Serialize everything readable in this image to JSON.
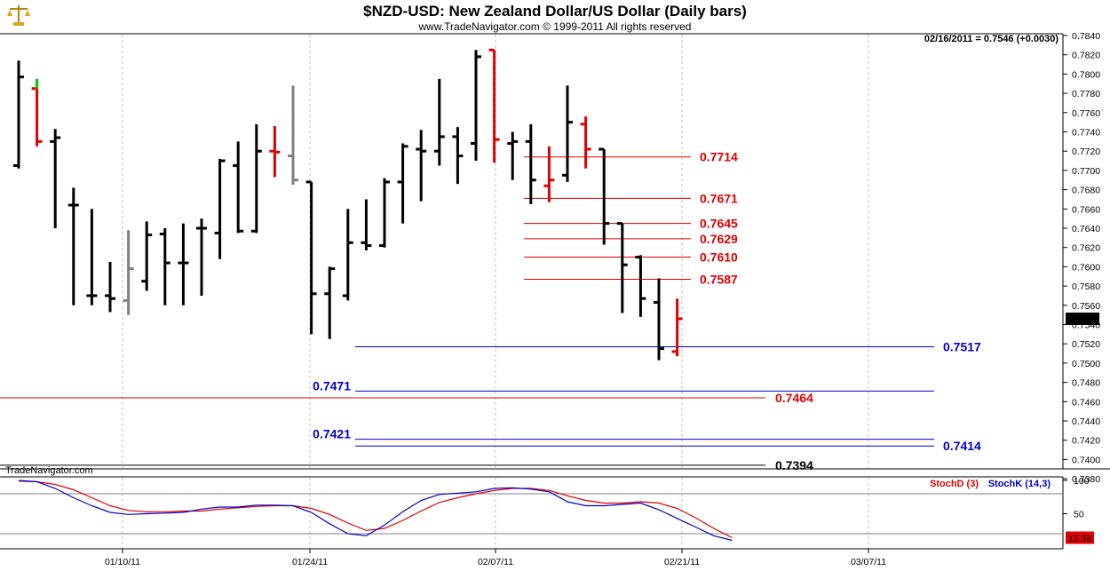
{
  "header": {
    "title": "$NZD-USD:  New Zealand Dollar/US Dollar  (Daily bars)",
    "subtitle": "www.TradeNavigator.com © 1999-2011 All rights reserved",
    "last_quote": "02/16/2011 = 0.7546 (+0.0030)",
    "watermark": "TradeNavigator.com",
    "logo_icon": "scales-of-justice-icon"
  },
  "colors": {
    "up": "#000000",
    "down": "#e00000",
    "neutral": "#808080",
    "green": "#00cc00",
    "blue_level": "#0000cc",
    "red_level": "#e00000",
    "stochD": "#e00000",
    "stochK": "#0000cc"
  },
  "chart_data": [
    {
      "type": "ohlc",
      "title": "$NZD-USD:  New Zealand Dollar/US Dollar  (Daily bars)",
      "ylim": [
        0.737,
        0.7845
      ],
      "y_ticks": [
        "0.7840",
        "0.7820",
        "0.7800",
        "0.7780",
        "0.7760",
        "0.7740",
        "0.7720",
        "0.7700",
        "0.7680",
        "0.7660",
        "0.7640",
        "0.7620",
        "0.7600",
        "0.7580",
        "0.7560",
        "0.7540",
        "0.7520",
        "0.7500",
        "0.7480",
        "0.7460",
        "0.7440",
        "0.7420",
        "0.7400",
        "0.7380"
      ],
      "x_tick_labels": [
        "01/10/11",
        "01/24/11",
        "02/07/11",
        "02/21/11",
        "03/07/11"
      ],
      "last_price_label": "0.7546",
      "bars": [
        {
          "o": 0.7705,
          "h": 0.7814,
          "l": 0.7702,
          "c": 0.7797,
          "color": "up"
        },
        {
          "o": 0.7785,
          "h": 0.7795,
          "l": 0.7725,
          "c": 0.773,
          "color": "down",
          "top_color": "green"
        },
        {
          "o": 0.773,
          "h": 0.7743,
          "l": 0.764,
          "c": 0.7734,
          "color": "up"
        },
        {
          "o": 0.7664,
          "h": 0.7682,
          "l": 0.756,
          "c": 0.7664,
          "color": "up"
        },
        {
          "o": 0.757,
          "h": 0.766,
          "l": 0.756,
          "c": 0.757,
          "color": "up"
        },
        {
          "o": 0.757,
          "h": 0.7605,
          "l": 0.7553,
          "c": 0.7567,
          "color": "up"
        },
        {
          "o": 0.7565,
          "h": 0.7638,
          "l": 0.755,
          "c": 0.7598,
          "color": "neutral"
        },
        {
          "o": 0.7585,
          "h": 0.7647,
          "l": 0.7575,
          "c": 0.7633,
          "color": "up"
        },
        {
          "o": 0.7634,
          "h": 0.764,
          "l": 0.756,
          "c": 0.7604,
          "color": "up"
        },
        {
          "o": 0.7604,
          "h": 0.7645,
          "l": 0.756,
          "c": 0.7604,
          "color": "up"
        },
        {
          "o": 0.764,
          "h": 0.765,
          "l": 0.757,
          "c": 0.764,
          "color": "up"
        },
        {
          "o": 0.7635,
          "h": 0.7712,
          "l": 0.7608,
          "c": 0.771,
          "color": "up"
        },
        {
          "o": 0.7705,
          "h": 0.773,
          "l": 0.7635,
          "c": 0.7637,
          "color": "up"
        },
        {
          "o": 0.7637,
          "h": 0.7748,
          "l": 0.7635,
          "c": 0.772,
          "color": "up"
        },
        {
          "o": 0.772,
          "h": 0.7746,
          "l": 0.7693,
          "c": 0.7719,
          "color": "down"
        },
        {
          "o": 0.7715,
          "h": 0.7788,
          "l": 0.7685,
          "c": 0.769,
          "color": "neutral"
        },
        {
          "o": 0.7688,
          "h": 0.7688,
          "l": 0.753,
          "c": 0.7572,
          "color": "up"
        },
        {
          "o": 0.7572,
          "h": 0.76,
          "l": 0.7525,
          "c": 0.7598,
          "color": "up"
        },
        {
          "o": 0.757,
          "h": 0.766,
          "l": 0.7565,
          "c": 0.7625,
          "color": "up"
        },
        {
          "o": 0.7625,
          "h": 0.767,
          "l": 0.7617,
          "c": 0.7622,
          "color": "up"
        },
        {
          "o": 0.7622,
          "h": 0.7692,
          "l": 0.762,
          "c": 0.7688,
          "color": "up"
        },
        {
          "o": 0.7688,
          "h": 0.7728,
          "l": 0.7645,
          "c": 0.7725,
          "color": "up"
        },
        {
          "o": 0.7722,
          "h": 0.7742,
          "l": 0.7668,
          "c": 0.772,
          "color": "up"
        },
        {
          "o": 0.772,
          "h": 0.7795,
          "l": 0.7705,
          "c": 0.7735,
          "color": "up"
        },
        {
          "o": 0.7735,
          "h": 0.7745,
          "l": 0.7686,
          "c": 0.7715,
          "color": "up"
        },
        {
          "o": 0.7728,
          "h": 0.7825,
          "l": 0.771,
          "c": 0.7818,
          "color": "up"
        },
        {
          "o": 0.7825,
          "h": 0.7825,
          "l": 0.7708,
          "c": 0.7732,
          "color": "down"
        },
        {
          "o": 0.7728,
          "h": 0.774,
          "l": 0.769,
          "c": 0.773,
          "color": "up"
        },
        {
          "o": 0.773,
          "h": 0.7748,
          "l": 0.7665,
          "c": 0.769,
          "color": "up"
        },
        {
          "o": 0.7684,
          "h": 0.7725,
          "l": 0.7667,
          "c": 0.769,
          "color": "down"
        },
        {
          "o": 0.7695,
          "h": 0.7788,
          "l": 0.7688,
          "c": 0.775,
          "color": "up"
        },
        {
          "o": 0.7748,
          "h": 0.7756,
          "l": 0.7702,
          "c": 0.7722,
          "color": "down"
        },
        {
          "o": 0.7722,
          "h": 0.7722,
          "l": 0.7623,
          "c": 0.7645,
          "color": "up"
        },
        {
          "o": 0.7645,
          "h": 0.7645,
          "l": 0.7552,
          "c": 0.7602,
          "color": "up"
        },
        {
          "o": 0.761,
          "h": 0.7612,
          "l": 0.7548,
          "c": 0.7567,
          "color": "up"
        },
        {
          "o": 0.7563,
          "h": 0.7588,
          "l": 0.7503,
          "c": 0.7515,
          "color": "up"
        },
        {
          "o": 0.7512,
          "h": 0.7567,
          "l": 0.7507,
          "c": 0.7546,
          "color": "down"
        }
      ],
      "levels": [
        {
          "value": 0.7714,
          "label": "0.7714",
          "color": "red_level"
        },
        {
          "value": 0.7671,
          "label": "0.7671",
          "color": "red_level"
        },
        {
          "value": 0.7645,
          "label": "0.7645",
          "color": "red_level"
        },
        {
          "value": 0.7629,
          "label": "0.7629",
          "color": "red_level"
        },
        {
          "value": 0.761,
          "label": "0.7610",
          "color": "red_level"
        },
        {
          "value": 0.7587,
          "label": "0.7587",
          "color": "red_level"
        },
        {
          "value": 0.7517,
          "label": "0.7517",
          "color": "blue_level"
        },
        {
          "value": 0.7471,
          "label": "0.7471",
          "color": "blue_level"
        },
        {
          "value": 0.7464,
          "label": "0.7464",
          "color": "red_level"
        },
        {
          "value": 0.7421,
          "label": "0.7421",
          "color": "blue_level"
        },
        {
          "value": 0.7414,
          "label": "0.7414",
          "color": "blue_level"
        },
        {
          "value": 0.7394,
          "label": "0.7394",
          "color": "up"
        }
      ]
    },
    {
      "type": "line",
      "ylim": [
        0,
        100
      ],
      "y_ticks": [
        "100",
        "50"
      ],
      "last_value_label": "12.58",
      "series": [
        {
          "name": "StochD (3)",
          "color": "stochD",
          "values": [
            99,
            98,
            94,
            86,
            74,
            62,
            55,
            53,
            53,
            54,
            54,
            57,
            59,
            61,
            62,
            62,
            58,
            49,
            36,
            25,
            28,
            40,
            54,
            67,
            74,
            80,
            85,
            88,
            88,
            85,
            77,
            70,
            66,
            66,
            68,
            66,
            58,
            44,
            28,
            14
          ]
        },
        {
          "name": "StochK (14,3)",
          "color": "stochK",
          "values": [
            100,
            98,
            88,
            74,
            62,
            52,
            49,
            50,
            51,
            52,
            57,
            60,
            60,
            63,
            63,
            62,
            52,
            35,
            20,
            17,
            33,
            53,
            70,
            79,
            81,
            83,
            88,
            89,
            87,
            83,
            68,
            62,
            62,
            64,
            66,
            56,
            43,
            30,
            17,
            10
          ]
        }
      ]
    }
  ]
}
